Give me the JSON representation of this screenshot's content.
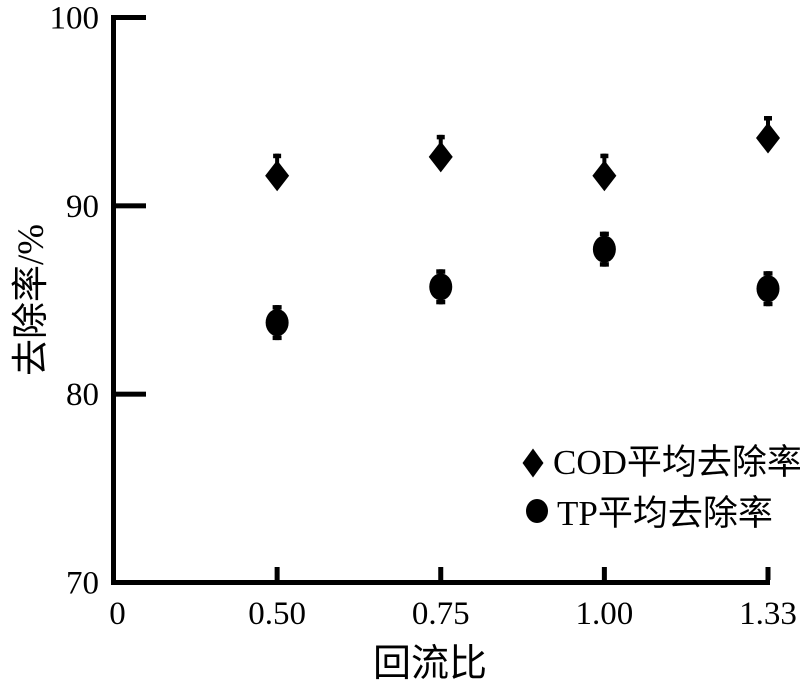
{
  "chart_data": {
    "type": "scatter",
    "title": "",
    "xlabel": "回流比",
    "ylabel": "去除率/%",
    "x_axis_type": "categorical-equal-spacing",
    "x_tick_labels": [
      "0",
      "0.50",
      "0.75",
      "1.00",
      "1.33"
    ],
    "y_ticks": [
      70,
      80,
      90,
      100
    ],
    "ylim": [
      70,
      100
    ],
    "grid": false,
    "legend_position": "inside-lower-right",
    "marker_color": "#000000",
    "background_color": "#ffffff",
    "series": [
      {
        "name": "COD平均去除率",
        "marker": "diamond",
        "color": "#000000",
        "points": [
          {
            "x": "0.50",
            "y": 91.6
          },
          {
            "x": "0.75",
            "y": 92.6
          },
          {
            "x": "1.00",
            "y": 91.6
          },
          {
            "x": "1.33",
            "y": 93.6
          }
        ]
      },
      {
        "name": "TP平均去除率",
        "marker": "circle",
        "color": "#000000",
        "points": [
          {
            "x": "0.50",
            "y": 83.8
          },
          {
            "x": "0.75",
            "y": 85.7
          },
          {
            "x": "1.00",
            "y": 87.7
          },
          {
            "x": "1.33",
            "y": 85.6
          }
        ]
      }
    ]
  }
}
